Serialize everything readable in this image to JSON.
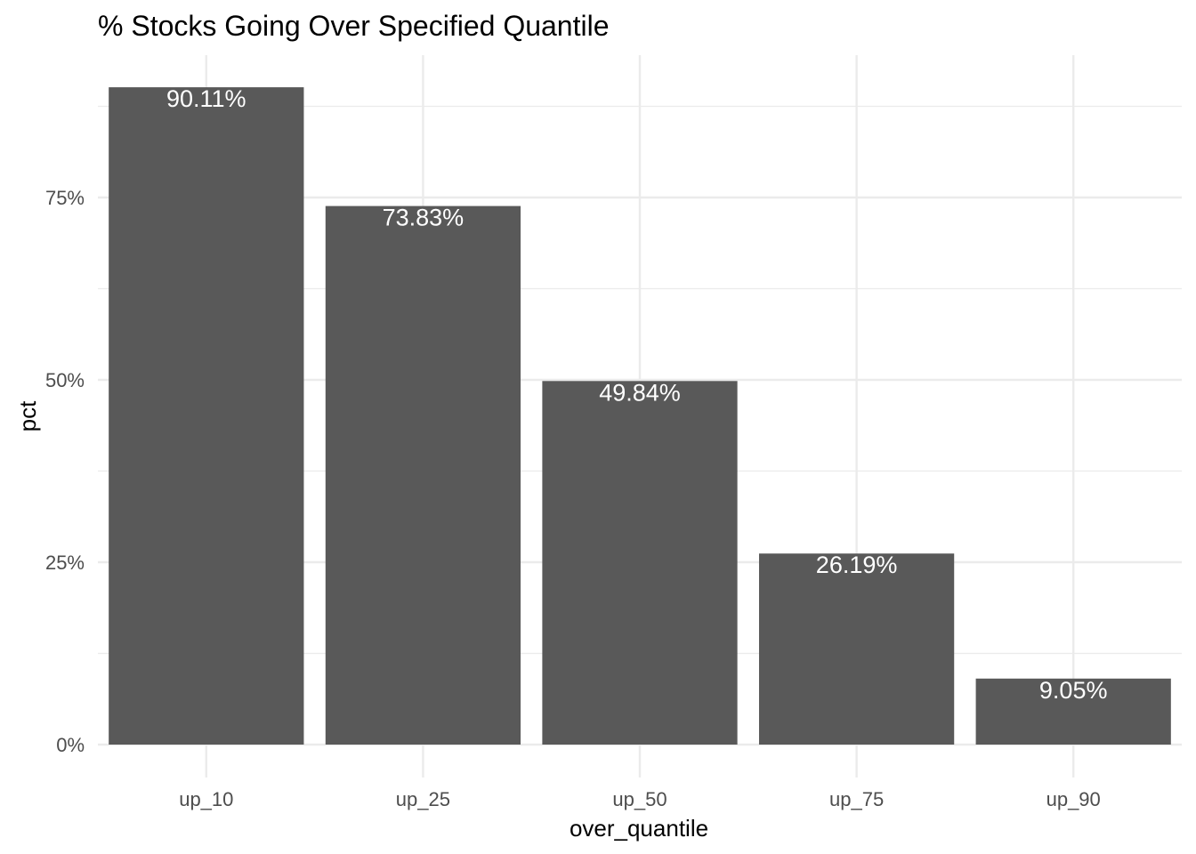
{
  "chart_data": {
    "type": "bar",
    "title": "% Stocks Going Over Specified Quantile",
    "xlabel": "over_quantile",
    "ylabel": "pct",
    "categories": [
      "up_10",
      "up_25",
      "up_50",
      "up_75",
      "up_90"
    ],
    "values": [
      90.11,
      73.83,
      49.84,
      26.19,
      9.05
    ],
    "value_labels": [
      "90.11%",
      "73.83%",
      "49.84%",
      "26.19%",
      "9.05%"
    ],
    "yticks": [
      0,
      25,
      50,
      75
    ],
    "ytick_labels": [
      "0%",
      "25%",
      "50%",
      "75%"
    ],
    "ylim": [
      0,
      94.6
    ],
    "grid": true,
    "legend": "none",
    "bar_color": "#595959",
    "label_color": "#ffffff",
    "grid_color": "#ebebeb"
  }
}
